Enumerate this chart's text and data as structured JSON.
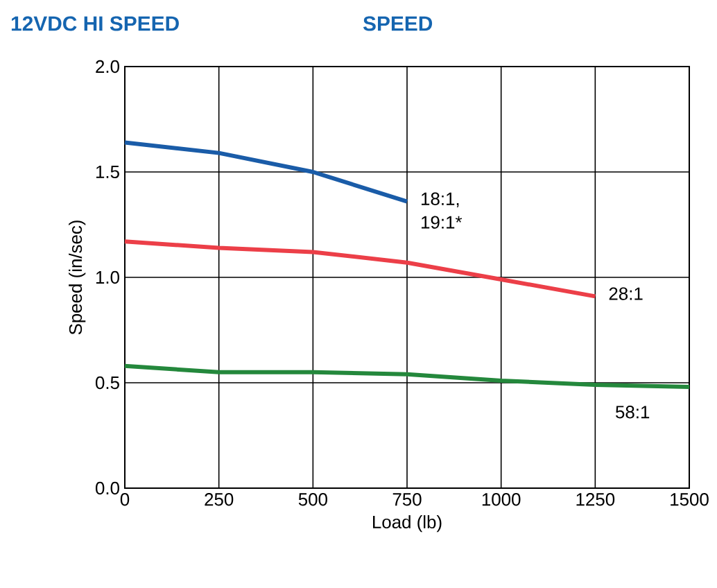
{
  "chart_data": {
    "type": "line",
    "title": "12VDC HI SPEED",
    "subtitle": "SPEED",
    "xlabel": "Load (lb)",
    "ylabel": "Speed (in/sec)",
    "xlim": [
      0,
      1500
    ],
    "xticks": [
      0,
      250,
      500,
      750,
      1000,
      1250,
      1500
    ],
    "ylim": [
      0,
      2.0
    ],
    "yticks": [
      {
        "value": 0,
        "label": "0.0"
      },
      {
        "value": 0.5,
        "label": "0.5"
      },
      {
        "value": 1.0,
        "label": "1.0"
      },
      {
        "value": 1.5,
        "label": "1.5"
      },
      {
        "value": 2.0,
        "label": "2.0"
      }
    ],
    "grid": true,
    "marker": "none",
    "line_style": "solid",
    "series": [
      {
        "name": "18:1, 19:1*",
        "color": "#1a5ca8",
        "x": [
          0,
          250,
          500,
          750
        ],
        "values": [
          1.64,
          1.59,
          1.5,
          1.36
        ]
      },
      {
        "name": "28:1",
        "color": "#ec3f48",
        "x": [
          0,
          250,
          500,
          750,
          1000,
          1250
        ],
        "values": [
          1.17,
          1.14,
          1.12,
          1.07,
          0.99,
          0.91
        ]
      },
      {
        "name": "58:1",
        "color": "#24883c",
        "x": [
          0,
          250,
          500,
          750,
          1000,
          1250,
          1500
        ],
        "values": [
          0.58,
          0.55,
          0.55,
          0.54,
          0.51,
          0.49,
          0.48
        ]
      }
    ]
  }
}
